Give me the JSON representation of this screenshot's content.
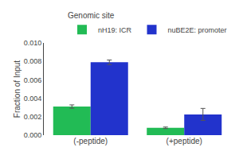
{
  "chart_data": {
    "type": "bar",
    "title": "Genomic site",
    "ylabel": "Fraction of Input",
    "categories": [
      "(-peptide)",
      "(+peptide)"
    ],
    "series": [
      {
        "name": "nH19: ICR",
        "color": "#22bb55",
        "values": [
          0.0031,
          0.0008
        ],
        "errors": [
          0.00018,
          8e-05
        ]
      },
      {
        "name": "nuBE2E: promoter",
        "color": "#2233cc",
        "values": [
          0.0079,
          0.00225
        ],
        "errors": [
          0.00025,
          0.00065
        ]
      }
    ],
    "ylim": [
      0,
      0.01
    ],
    "yticks": [
      {
        "value": 0,
        "label": "0.000"
      },
      0.002,
      0.004,
      0.006,
      0.008,
      {
        "value": 0.01,
        "label": "0.010"
      }
    ],
    "grid": false,
    "legend": "upper right"
  }
}
